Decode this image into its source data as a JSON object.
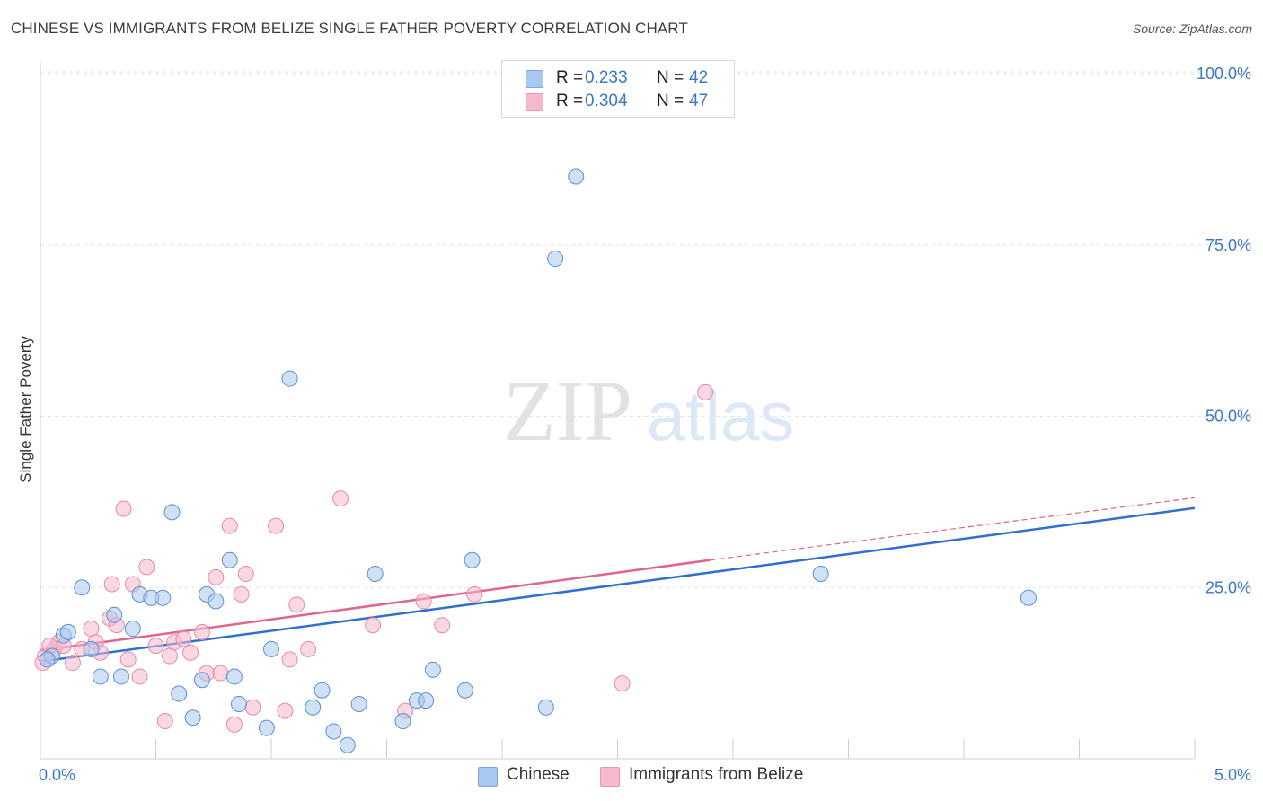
{
  "title": "CHINESE VS IMMIGRANTS FROM BELIZE SINGLE FATHER POVERTY CORRELATION CHART",
  "source": "Source: ZipAtlas.com",
  "watermark": {
    "zip": "ZIP",
    "atlas": "atlas"
  },
  "legend_top": [
    {
      "r_label": "R =",
      "r_value": "0.233",
      "n_label": "N =",
      "n_value": "42",
      "color": "#a9c8ef"
    },
    {
      "r_label": "R =",
      "r_value": "0.304",
      "n_label": "N =",
      "n_value": "47",
      "color": "#f5b8cc"
    }
  ],
  "legend_bottom": [
    {
      "label": "Chinese",
      "color": "#a9c8ef"
    },
    {
      "label": "Immigrants from Belize",
      "color": "#f5b8cc"
    }
  ],
  "chart_data": {
    "type": "scatter",
    "title": "CHINESE VS IMMIGRANTS FROM BELIZE SINGLE FATHER POVERTY CORRELATION CHART",
    "xlabel": "",
    "ylabel": "Single Father Poverty",
    "xlim": [
      0,
      5
    ],
    "ylim": [
      0,
      100
    ],
    "x_tick_labels": [
      "0.0%",
      "5.0%"
    ],
    "y_tick_labels": [
      "100.0%",
      "75.0%",
      "50.0%",
      "25.0%"
    ],
    "y_ticks": [
      100,
      75,
      50,
      25
    ],
    "grid": true,
    "legend_position": "top-center",
    "colors": {
      "chinese_fill": "#a9c8ef",
      "chinese_edge": "#5b8fd0",
      "chinese_line": "#2f6fcf",
      "belize_fill": "#f5b8cc",
      "belize_edge": "#e58aa7",
      "belize_line": "#e0648f",
      "axis_text": "#3b78c4"
    },
    "series": [
      {
        "name": "Chinese",
        "points": [
          [
            0.05,
            15
          ],
          [
            0.1,
            18
          ],
          [
            0.12,
            18.5
          ],
          [
            0.18,
            25
          ],
          [
            0.22,
            16
          ],
          [
            0.26,
            12
          ],
          [
            0.32,
            21
          ],
          [
            0.35,
            12
          ],
          [
            0.4,
            19
          ],
          [
            0.43,
            24
          ],
          [
            0.48,
            23.5
          ],
          [
            0.53,
            23.5
          ],
          [
            0.57,
            36
          ],
          [
            0.6,
            9.5
          ],
          [
            0.66,
            6
          ],
          [
            0.7,
            11.5
          ],
          [
            0.72,
            24
          ],
          [
            0.76,
            23
          ],
          [
            0.82,
            29
          ],
          [
            0.84,
            12
          ],
          [
            0.86,
            8
          ],
          [
            0.98,
            4.5
          ],
          [
            1.0,
            16
          ],
          [
            1.08,
            55.5
          ],
          [
            1.18,
            7.5
          ],
          [
            1.22,
            10
          ],
          [
            1.27,
            4
          ],
          [
            1.33,
            2
          ],
          [
            1.38,
            8
          ],
          [
            1.45,
            27
          ],
          [
            1.57,
            5.5
          ],
          [
            1.63,
            8.5
          ],
          [
            1.67,
            8.5
          ],
          [
            1.7,
            13
          ],
          [
            1.84,
            10
          ],
          [
            1.87,
            29
          ],
          [
            2.19,
            7.5
          ],
          [
            2.23,
            73
          ],
          [
            2.32,
            85
          ],
          [
            3.38,
            27
          ],
          [
            4.28,
            23.5
          ],
          [
            0.03,
            14.5
          ]
        ],
        "trend": {
          "x": [
            0,
            5
          ],
          "y": [
            14.2,
            36.6
          ]
        }
      },
      {
        "name": "Immigrants from Belize",
        "points": [
          [
            0.02,
            15
          ],
          [
            0.06,
            16
          ],
          [
            0.08,
            17
          ],
          [
            0.1,
            16.5
          ],
          [
            0.14,
            14
          ],
          [
            0.18,
            16
          ],
          [
            0.22,
            19
          ],
          [
            0.24,
            17
          ],
          [
            0.26,
            15.5
          ],
          [
            0.3,
            20.5
          ],
          [
            0.31,
            25.5
          ],
          [
            0.33,
            19.5
          ],
          [
            0.36,
            36.5
          ],
          [
            0.38,
            14.5
          ],
          [
            0.4,
            25.5
          ],
          [
            0.43,
            12
          ],
          [
            0.46,
            28
          ],
          [
            0.5,
            16.5
          ],
          [
            0.54,
            5.5
          ],
          [
            0.56,
            15
          ],
          [
            0.58,
            17
          ],
          [
            0.62,
            17.5
          ],
          [
            0.65,
            15.5
          ],
          [
            0.7,
            18.5
          ],
          [
            0.72,
            12.5
          ],
          [
            0.76,
            26.5
          ],
          [
            0.78,
            12.5
          ],
          [
            0.82,
            34
          ],
          [
            0.84,
            5
          ],
          [
            0.87,
            24
          ],
          [
            0.89,
            27
          ],
          [
            0.92,
            7.5
          ],
          [
            1.02,
            34
          ],
          [
            1.06,
            7
          ],
          [
            1.08,
            14.5
          ],
          [
            1.11,
            22.5
          ],
          [
            1.16,
            16
          ],
          [
            1.3,
            38
          ],
          [
            1.44,
            19.5
          ],
          [
            1.58,
            7
          ],
          [
            1.66,
            23
          ],
          [
            1.74,
            19.5
          ],
          [
            1.88,
            24
          ],
          [
            2.52,
            11
          ],
          [
            2.88,
            53.5
          ],
          [
            0.01,
            14
          ],
          [
            0.04,
            16.5
          ]
        ],
        "trend": {
          "x": [
            0,
            2.9
          ],
          "y": [
            15.8,
            29.0
          ]
        },
        "trend_extension": {
          "x": [
            2.9,
            5
          ],
          "y": [
            29.0,
            38.1
          ]
        }
      }
    ]
  }
}
